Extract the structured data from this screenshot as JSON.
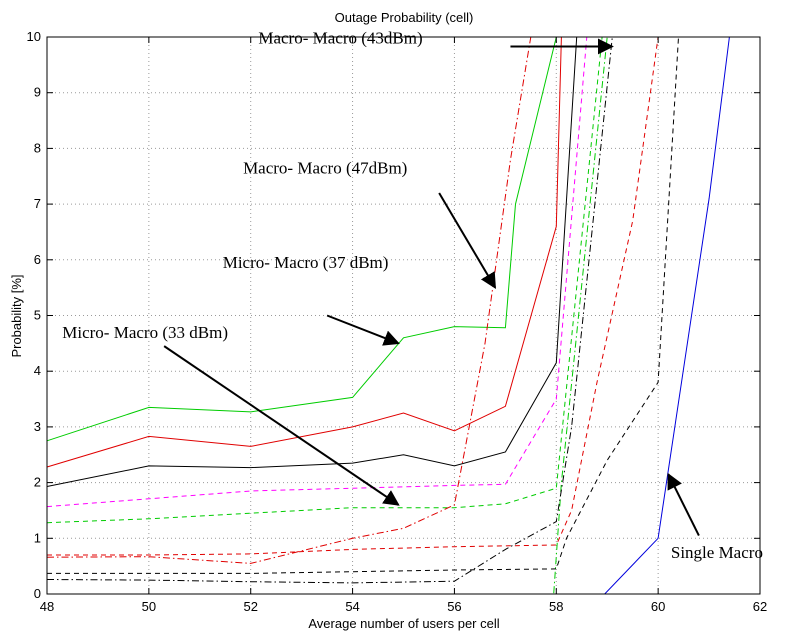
{
  "chart_data": {
    "type": "line",
    "title": "Outage Probability (cell)",
    "xlabel": "Average number of users per cell",
    "ylabel": "Probability [%]",
    "xlim": [
      48,
      62
    ],
    "ylim": [
      0,
      10
    ],
    "xticks": [
      48,
      50,
      52,
      54,
      56,
      58,
      60,
      62
    ],
    "yticks": [
      0,
      1,
      2,
      3,
      4,
      5,
      6,
      7,
      8,
      9,
      10
    ],
    "grid": true,
    "series": [
      {
        "color": "#00cc00",
        "dash": "solid",
        "x": [
          48,
          50,
          52,
          54,
          55,
          56,
          57,
          57.2,
          58,
          62
        ],
        "y": [
          2.75,
          3.35,
          3.27,
          3.53,
          4.6,
          4.8,
          4.78,
          7.0,
          10.0,
          10.0
        ]
      },
      {
        "color": "#e00000",
        "dash": "solid",
        "x": [
          48,
          50,
          52,
          54,
          55,
          56,
          57,
          58,
          58.1,
          62
        ],
        "y": [
          2.28,
          2.83,
          2.65,
          3.0,
          3.25,
          2.93,
          3.37,
          6.6,
          10.0,
          10.0
        ]
      },
      {
        "color": "#000000",
        "dash": "solid",
        "x": [
          48,
          50,
          52,
          54,
          55,
          56,
          57,
          58,
          58.4,
          62
        ],
        "y": [
          1.93,
          2.3,
          2.27,
          2.35,
          2.5,
          2.3,
          2.55,
          4.15,
          10.0,
          10.0
        ]
      },
      {
        "color": "#ff00ff",
        "dash": "dashed",
        "x": [
          48,
          52,
          56,
          57,
          58,
          58.6,
          62
        ],
        "y": [
          1.57,
          1.85,
          1.95,
          1.97,
          3.5,
          10.0,
          10.0
        ]
      },
      {
        "color": "#00cc00",
        "dash": "dashed",
        "x": [
          48,
          50,
          52,
          54,
          56,
          57,
          58,
          58.9,
          62
        ],
        "y": [
          1.28,
          1.35,
          1.45,
          1.55,
          1.55,
          1.62,
          1.9,
          10.0,
          10.0
        ]
      },
      {
        "color": "#00cc00",
        "dash": "dashdot",
        "x": [
          48,
          57.95,
          58.1,
          59.0,
          62
        ],
        "y": [
          0.0,
          0.0,
          2.0,
          10.0,
          10.0
        ]
      },
      {
        "color": "#e00000",
        "dash": "dashdot",
        "x": [
          48,
          50,
          52,
          54,
          55,
          56,
          56.6,
          57.1,
          57.5,
          62
        ],
        "y": [
          0.66,
          0.67,
          0.55,
          1.0,
          1.18,
          1.6,
          4.5,
          7.8,
          10.0,
          10.0
        ]
      },
      {
        "color": "#e00000",
        "dash": "dashed",
        "x": [
          48,
          50,
          52,
          54,
          56,
          58,
          58.3,
          58.8,
          59.5,
          60,
          62
        ],
        "y": [
          0.7,
          0.7,
          0.72,
          0.8,
          0.85,
          0.88,
          1.5,
          3.8,
          6.7,
          10.0,
          10.0
        ]
      },
      {
        "color": "#000000",
        "dash": "dashdot",
        "x": [
          48,
          50,
          52,
          54,
          56,
          57,
          58,
          58.3,
          59.1,
          62
        ],
        "y": [
          0.26,
          0.25,
          0.22,
          0.2,
          0.23,
          0.8,
          1.3,
          3.0,
          10.0,
          10.0
        ]
      },
      {
        "color": "#000000",
        "dash": "dashed",
        "x": [
          48,
          52,
          54,
          56,
          58,
          58.2,
          59,
          60,
          60.4,
          62
        ],
        "y": [
          0.37,
          0.37,
          0.4,
          0.43,
          0.45,
          1.0,
          2.4,
          3.8,
          10.0,
          10.0
        ]
      },
      {
        "color": "#0000dd",
        "dash": "solid",
        "x": [
          48,
          58.95,
          60,
          61,
          61.4,
          62
        ],
        "y": [
          0.0,
          0.0,
          1.0,
          7.1,
          10.0,
          10.0
        ]
      }
    ],
    "annotations": [
      {
        "text": "Macro- Macro (43dBm)",
        "label_at": [
          52.15,
          9.88
        ],
        "arrow_from": [
          57.1,
          9.83
        ],
        "arrow_to": [
          59.1,
          9.83
        ]
      },
      {
        "text": "Macro- Macro (47dBm)",
        "label_at": [
          51.85,
          7.55
        ],
        "arrow_from": [
          55.7,
          7.2
        ],
        "arrow_to": [
          56.8,
          5.5
        ]
      },
      {
        "text": "Micro- Macro (37 dBm)",
        "label_at": [
          51.45,
          5.85
        ],
        "arrow_from": [
          53.5,
          5.0
        ],
        "arrow_to": [
          54.9,
          4.5
        ]
      },
      {
        "text": "Micro- Macro (33 dBm)",
        "label_at": [
          48.3,
          4.6
        ],
        "arrow_from": [
          50.3,
          4.45
        ],
        "arrow_to": [
          54.9,
          1.6
        ]
      },
      {
        "text": "Single Macro",
        "label_at": [
          60.25,
          0.65
        ],
        "arrow_from": [
          60.8,
          1.05
        ],
        "arrow_to": [
          60.2,
          2.15
        ]
      }
    ]
  }
}
